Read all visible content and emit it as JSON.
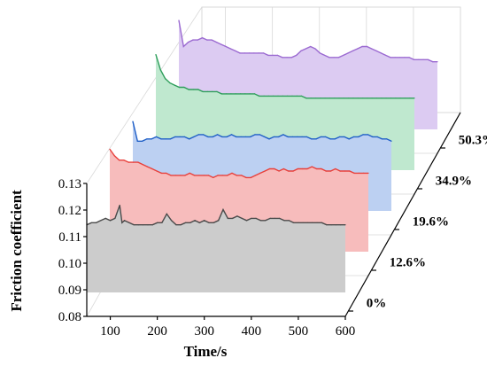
{
  "chart_data": {
    "type": "line",
    "style": "3d-waterfall",
    "xlabel": "Time/s",
    "ylabel": "Friction coefficient",
    "x_ticks": [
      100,
      200,
      300,
      400,
      500,
      600
    ],
    "y_ticks": [
      "0.08",
      "0.09",
      "0.10",
      "0.11",
      "0.12",
      "0.13"
    ],
    "xlim": [
      50,
      600
    ],
    "ylim": [
      0.08,
      0.13
    ],
    "grid": true,
    "series": [
      {
        "name": "0%",
        "color": "#4a4a4a",
        "fill": "#cccccc",
        "x": [
          50,
          60,
          70,
          80,
          90,
          100,
          110,
          120,
          125,
          130,
          140,
          150,
          160,
          170,
          180,
          190,
          200,
          210,
          220,
          230,
          240,
          250,
          260,
          270,
          280,
          290,
          300,
          310,
          320,
          330,
          340,
          350,
          360,
          370,
          380,
          390,
          400,
          410,
          420,
          430,
          440,
          450,
          460,
          470,
          480,
          490,
          500,
          510,
          520,
          530,
          540,
          550,
          560,
          570,
          580,
          590,
          600
        ],
        "y": [
          0.111,
          0.112,
          0.112,
          0.113,
          0.114,
          0.113,
          0.114,
          0.12,
          0.112,
          0.113,
          0.112,
          0.111,
          0.111,
          0.111,
          0.111,
          0.111,
          0.112,
          0.112,
          0.116,
          0.113,
          0.111,
          0.111,
          0.112,
          0.112,
          0.113,
          0.112,
          0.113,
          0.112,
          0.112,
          0.113,
          0.118,
          0.114,
          0.114,
          0.115,
          0.114,
          0.113,
          0.114,
          0.114,
          0.113,
          0.113,
          0.114,
          0.114,
          0.114,
          0.113,
          0.113,
          0.112,
          0.112,
          0.112,
          0.112,
          0.112,
          0.112,
          0.112,
          0.111,
          0.111,
          0.111,
          0.111,
          0.111
        ]
      },
      {
        "name": "12.6%",
        "color": "#e8413c",
        "fill": "#f7bcbc",
        "x": [
          50,
          60,
          70,
          80,
          90,
          100,
          110,
          120,
          130,
          140,
          150,
          160,
          170,
          180,
          190,
          200,
          210,
          220,
          230,
          240,
          250,
          260,
          270,
          280,
          290,
          300,
          310,
          320,
          330,
          340,
          350,
          360,
          370,
          380,
          390,
          400,
          410,
          420,
          430,
          440,
          450,
          460,
          470,
          480,
          490,
          500,
          510,
          520,
          530,
          540,
          550,
          560,
          570,
          580,
          590,
          600
        ],
        "y": [
          0.127,
          0.124,
          0.122,
          0.122,
          0.121,
          0.121,
          0.121,
          0.12,
          0.119,
          0.118,
          0.117,
          0.116,
          0.116,
          0.115,
          0.115,
          0.115,
          0.115,
          0.116,
          0.115,
          0.115,
          0.115,
          0.115,
          0.114,
          0.115,
          0.115,
          0.115,
          0.116,
          0.115,
          0.115,
          0.114,
          0.114,
          0.115,
          0.116,
          0.117,
          0.118,
          0.118,
          0.117,
          0.118,
          0.117,
          0.117,
          0.118,
          0.118,
          0.118,
          0.119,
          0.118,
          0.118,
          0.117,
          0.117,
          0.118,
          0.117,
          0.117,
          0.117,
          0.116,
          0.116,
          0.116,
          0.116
        ]
      },
      {
        "name": "19.6%",
        "color": "#1f5fc7",
        "fill": "#bcd0f2",
        "x": [
          50,
          60,
          70,
          80,
          90,
          100,
          110,
          120,
          130,
          140,
          150,
          160,
          170,
          180,
          190,
          200,
          210,
          220,
          230,
          240,
          250,
          260,
          270,
          280,
          290,
          300,
          310,
          320,
          330,
          340,
          350,
          360,
          370,
          380,
          390,
          400,
          410,
          420,
          430,
          440,
          450,
          460,
          470,
          480,
          490,
          500,
          510,
          520,
          530,
          540,
          550,
          560,
          570,
          580,
          590,
          600
        ],
        "y": [
          0.121,
          0.112,
          0.112,
          0.113,
          0.113,
          0.114,
          0.113,
          0.113,
          0.113,
          0.114,
          0.114,
          0.114,
          0.113,
          0.114,
          0.115,
          0.115,
          0.114,
          0.114,
          0.115,
          0.114,
          0.114,
          0.115,
          0.114,
          0.114,
          0.114,
          0.114,
          0.115,
          0.115,
          0.114,
          0.113,
          0.114,
          0.114,
          0.115,
          0.114,
          0.114,
          0.114,
          0.114,
          0.114,
          0.113,
          0.113,
          0.114,
          0.114,
          0.113,
          0.113,
          0.114,
          0.114,
          0.113,
          0.114,
          0.114,
          0.115,
          0.115,
          0.114,
          0.114,
          0.113,
          0.113,
          0.112
        ]
      },
      {
        "name": "34.9%",
        "color": "#2e9e5b",
        "fill": "#bfe8cf",
        "x": [
          50,
          60,
          70,
          80,
          90,
          100,
          110,
          120,
          130,
          140,
          150,
          160,
          170,
          180,
          190,
          200,
          210,
          220,
          230,
          240,
          250,
          260,
          270,
          280,
          290,
          300,
          310,
          320,
          330,
          340,
          350,
          360,
          370,
          380,
          390,
          400,
          410,
          420,
          430,
          440,
          450,
          460,
          470,
          480,
          490,
          500,
          510,
          520,
          530,
          540,
          550,
          560,
          570,
          580,
          590,
          600
        ],
        "y": [
          0.133,
          0.126,
          0.122,
          0.12,
          0.119,
          0.118,
          0.118,
          0.117,
          0.117,
          0.117,
          0.116,
          0.116,
          0.116,
          0.116,
          0.115,
          0.115,
          0.115,
          0.115,
          0.115,
          0.115,
          0.115,
          0.115,
          0.114,
          0.114,
          0.114,
          0.114,
          0.114,
          0.114,
          0.114,
          0.114,
          0.114,
          0.114,
          0.113,
          0.113,
          0.113,
          0.113,
          0.113,
          0.113,
          0.113,
          0.113,
          0.113,
          0.113,
          0.113,
          0.113,
          0.113,
          0.113,
          0.113,
          0.113,
          0.113,
          0.113,
          0.113,
          0.113,
          0.113,
          0.113,
          0.113,
          0.113
        ]
      },
      {
        "name": "50.3%",
        "color": "#9b6ad1",
        "fill": "#dccbf2",
        "x": [
          50,
          60,
          70,
          80,
          90,
          100,
          110,
          120,
          130,
          140,
          150,
          160,
          170,
          180,
          190,
          200,
          210,
          220,
          230,
          240,
          250,
          260,
          270,
          280,
          290,
          300,
          310,
          320,
          330,
          340,
          350,
          360,
          370,
          380,
          390,
          400,
          410,
          420,
          430,
          440,
          450,
          460,
          470,
          480,
          490,
          500,
          510,
          520,
          530,
          540,
          550,
          560,
          570,
          580,
          590,
          600
        ],
        "y": [
          0.13,
          0.118,
          0.12,
          0.121,
          0.121,
          0.122,
          0.121,
          0.121,
          0.12,
          0.119,
          0.118,
          0.117,
          0.116,
          0.115,
          0.115,
          0.115,
          0.115,
          0.115,
          0.115,
          0.114,
          0.114,
          0.114,
          0.113,
          0.113,
          0.113,
          0.114,
          0.116,
          0.117,
          0.118,
          0.117,
          0.115,
          0.114,
          0.113,
          0.113,
          0.113,
          0.114,
          0.115,
          0.116,
          0.117,
          0.118,
          0.118,
          0.117,
          0.116,
          0.115,
          0.114,
          0.113,
          0.113,
          0.113,
          0.113,
          0.113,
          0.112,
          0.112,
          0.112,
          0.112,
          0.111,
          0.111
        ]
      }
    ]
  }
}
